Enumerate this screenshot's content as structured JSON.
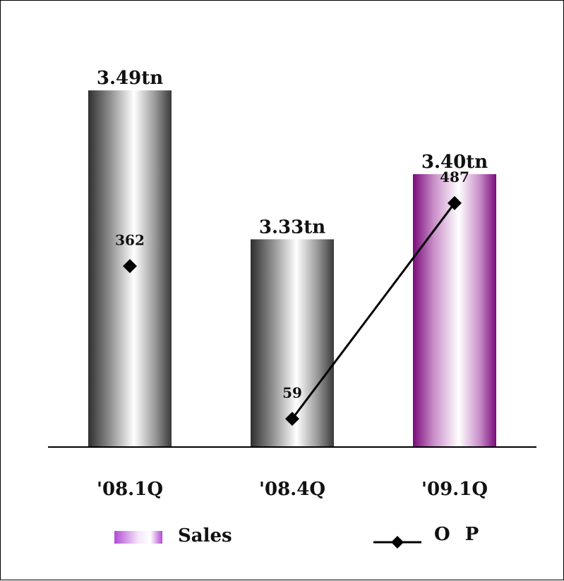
{
  "chart_data": {
    "type": "bar",
    "categories": [
      "'08.1Q",
      "'08.4Q",
      "'09.1Q"
    ],
    "series": [
      {
        "name": "Sales",
        "kind": "bar",
        "values": [
          3.49,
          3.33,
          3.4
        ],
        "labels": [
          "3.49tn",
          "3.33tn",
          "3.40tn"
        ],
        "colors": [
          "#2f2f2f",
          "#2f2f2f",
          "#7a0a7a"
        ]
      },
      {
        "name": "O P",
        "kind": "line",
        "values": [
          362,
          59,
          487
        ],
        "labels": [
          "362",
          "59",
          "487"
        ],
        "connected": [
          false,
          true,
          true
        ],
        "color": "#000000"
      }
    ],
    "legend": [
      "Sales",
      "O P"
    ],
    "legend_position": "bottom"
  }
}
